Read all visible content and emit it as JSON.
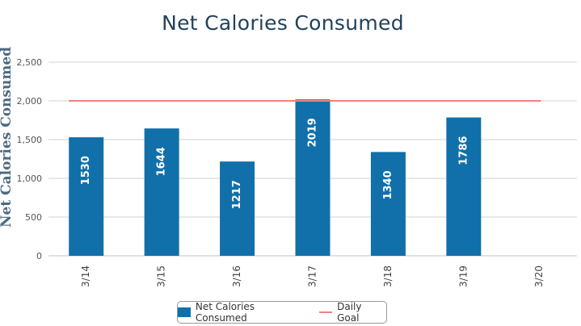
{
  "chart_data": {
    "type": "bar",
    "title": "Net Calories Consumed",
    "ylabel": "Net Calories Consumed",
    "xlabel": "",
    "categories": [
      "3/14",
      "3/15",
      "3/16",
      "3/17",
      "3/18",
      "3/19",
      "3/20"
    ],
    "series": [
      {
        "name": "Net Calories Consumed",
        "type": "bar",
        "color": "#1170aa",
        "values": [
          1530,
          1644,
          1217,
          2019,
          1340,
          1786,
          null
        ],
        "data_labels": [
          "1530",
          "1644",
          "1217",
          "2019",
          "1340",
          "1786",
          ""
        ]
      },
      {
        "name": "Daily Goal",
        "type": "line",
        "color": "#f08080",
        "values": [
          2000,
          2000,
          2000,
          2000,
          2000,
          2000,
          2000
        ]
      }
    ],
    "ylim": [
      0,
      2500
    ],
    "yticks": [
      0,
      500,
      1000,
      1500,
      2000,
      2500
    ],
    "ytick_labels": [
      "0",
      "500",
      "1,000",
      "1,500",
      "2,000",
      "2,500"
    ],
    "grid": true,
    "legend_position": "bottom-center"
  }
}
